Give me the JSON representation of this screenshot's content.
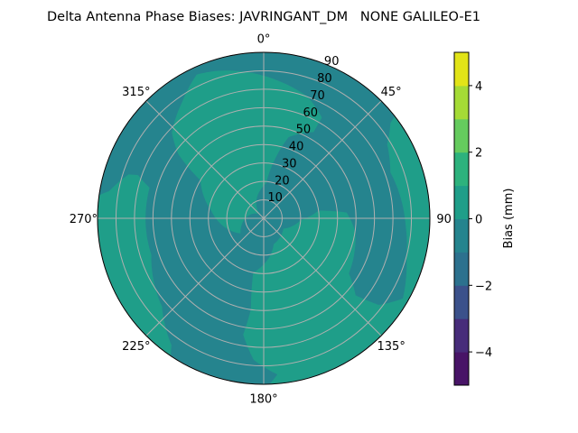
{
  "chart_data": {
    "type": "heatmap",
    "subtype": "polar-filled-contour",
    "title": "Delta Antenna Phase Biases: JAVRINGANT_DM   NONE GALILEO-E1",
    "theta_direction": "clockwise",
    "theta_zero": "north",
    "theta_ticks": [
      0,
      45,
      90,
      135,
      180,
      225,
      270,
      315
    ],
    "theta_tick_labels": [
      "0°",
      "45°",
      "90",
      "135°",
      "180°",
      "225°",
      "270°",
      "315°"
    ],
    "r_ticks": [
      10,
      20,
      30,
      40,
      50,
      60,
      70,
      80,
      90
    ],
    "r_tick_labels": [
      "10",
      "20",
      "30",
      "40",
      "50",
      "60",
      "70",
      "80",
      "90"
    ],
    "r_range": [
      0,
      90
    ],
    "grid": true,
    "background_level": [
      -1,
      0
    ],
    "regions": [
      {
        "level": [
          0,
          1
        ],
        "boundary_az_zen": [
          [
            315,
            3
          ],
          [
            237,
            15
          ],
          [
            279,
            29
          ],
          [
            301,
            40
          ],
          [
            307,
            58
          ],
          [
            313,
            68
          ],
          [
            325,
            77
          ],
          [
            335,
            86
          ],
          [
            342,
            84
          ],
          [
            353,
            80
          ],
          [
            6,
            75
          ],
          [
            20,
            70
          ],
          [
            30,
            63
          ],
          [
            30,
            54
          ],
          [
            17,
            46
          ],
          [
            10,
            31
          ],
          [
            4,
            19
          ]
        ]
      },
      {
        "level": [
          0,
          1
        ],
        "boundary_az_zen": [
          [
            52,
            90
          ],
          [
            53,
            86
          ],
          [
            59,
            78
          ],
          [
            70,
            73
          ],
          [
            93,
            77
          ],
          [
            105,
            80
          ],
          [
            120,
            87
          ],
          [
            127,
            78
          ],
          [
            130,
            65
          ],
          [
            123,
            55
          ],
          [
            98,
            50
          ],
          [
            86,
            45
          ],
          [
            82,
            30
          ],
          [
            93,
            20
          ],
          [
            118,
            12
          ],
          [
            159,
            15
          ],
          [
            169,
            20
          ],
          [
            180,
            25
          ],
          [
            191,
            30
          ],
          [
            188,
            50
          ],
          [
            190,
            64
          ],
          [
            184,
            77
          ],
          [
            175,
            85
          ],
          [
            178,
            90
          ]
        ]
      },
      {
        "level": [
          0,
          1
        ],
        "boundary_az_zen": [
          [
            214,
            90
          ],
          [
            278,
            90
          ],
          [
            280,
            85
          ],
          [
            288,
            77
          ],
          [
            289,
            72
          ],
          [
            285,
            64
          ],
          [
            252,
            64
          ],
          [
            229,
            73
          ],
          [
            216,
            85
          ]
        ]
      }
    ],
    "colorbar": {
      "label": "Bias (mm)",
      "levels": [
        -5,
        -4,
        -3,
        -2,
        -1,
        0,
        1,
        2,
        3,
        4,
        5
      ],
      "ticks": [
        -4,
        -2,
        0,
        2,
        4
      ],
      "tick_labels": [
        "−4",
        "−2",
        "0",
        "2",
        "4"
      ],
      "colors": [
        "#481467",
        "#472c7a",
        "#3b518b",
        "#2c718e",
        "#25848e",
        "#1f9e89",
        "#2db27d",
        "#65cb5e",
        "#a5db36",
        "#e2e418"
      ],
      "colormap": "viridis"
    }
  }
}
